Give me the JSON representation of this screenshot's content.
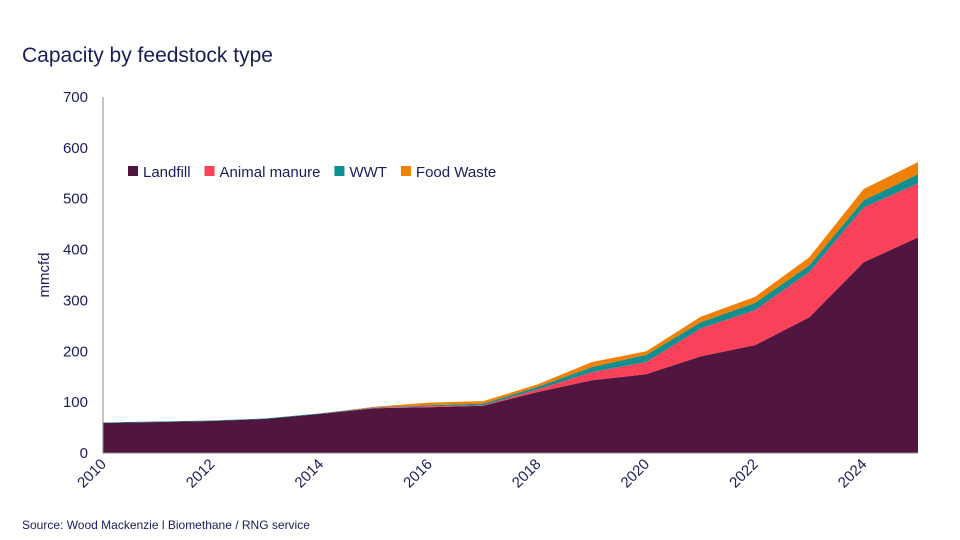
{
  "chart_data": {
    "type": "area",
    "stacked": true,
    "title": "Capacity by feedstock type",
    "ylabel": "mmcfd",
    "xlabel": "",
    "ylim": [
      0,
      700
    ],
    "yticks": [
      0,
      100,
      200,
      300,
      400,
      500,
      600,
      700
    ],
    "x": [
      2010,
      2011,
      2012,
      2013,
      2014,
      2015,
      2016,
      2017,
      2018,
      2019,
      2020,
      2021,
      2022,
      2023,
      2024,
      2025
    ],
    "xticks": [
      2010,
      2012,
      2014,
      2016,
      2018,
      2020,
      2022,
      2024
    ],
    "legend_position": "top-left",
    "grid": false,
    "series": [
      {
        "name": "Landfill",
        "color": "#51163f",
        "values": [
          59,
          61,
          63,
          67,
          77,
          88,
          90,
          93,
          120,
          143,
          155,
          190,
          212,
          267,
          375,
          424
        ]
      },
      {
        "name": "Animal manure",
        "color": "#f9415a",
        "values": [
          0,
          0,
          0,
          0,
          0,
          1,
          2,
          1,
          5,
          16,
          24,
          55,
          69,
          89,
          108,
          106
        ]
      },
      {
        "name": "WWT",
        "color": "#0f8f8f",
        "values": [
          1,
          1,
          1,
          1,
          1,
          1,
          2,
          3,
          5,
          10,
          14,
          12,
          14,
          13,
          14,
          18
        ]
      },
      {
        "name": "Food Waste",
        "color": "#f08105",
        "values": [
          0,
          0,
          0,
          0,
          0,
          1,
          5,
          5,
          5,
          10,
          7,
          11,
          12,
          16,
          22,
          24
        ]
      }
    ]
  },
  "source": "Source: Wood Mackenzie l Biomethane / RNG service"
}
